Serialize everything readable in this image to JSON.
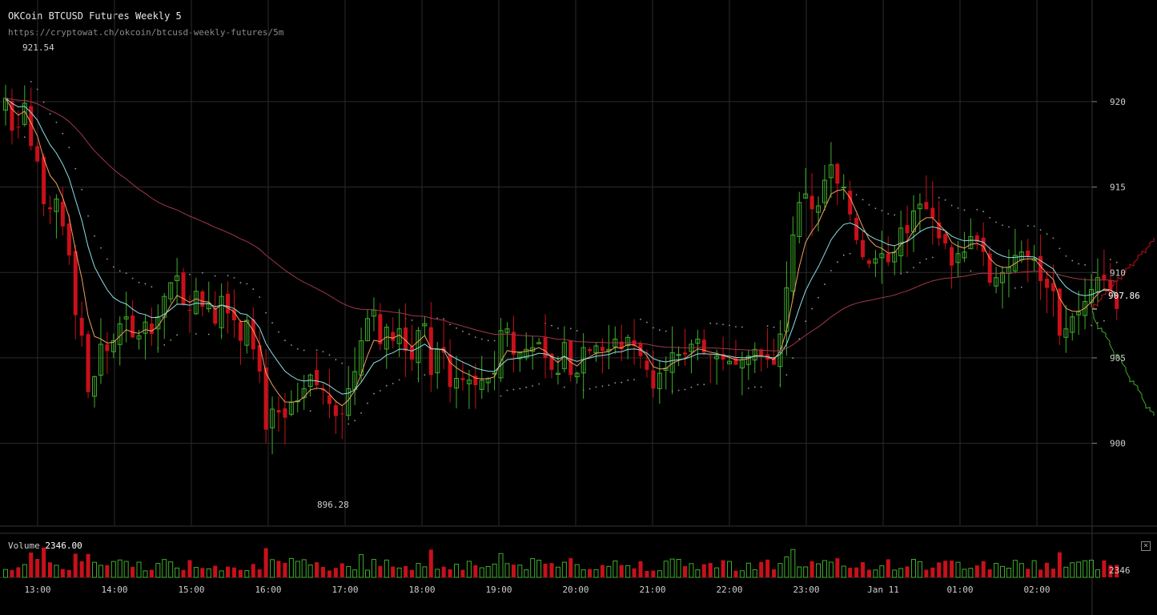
{
  "header": {
    "title": "OKCoin BTCUSD Futures Weekly 5",
    "url": "https://cryptowat.ch/okcoin/btcusd-weekly-futures/5m"
  },
  "volume_panel": {
    "label": "Volume",
    "value": "2346.00",
    "axis_label": "2346",
    "close_icon": "close-icon"
  },
  "colors": {
    "background": "#000000",
    "up": "#3fae2a",
    "down": "#c8101b",
    "grid": "#2b2b2b",
    "ema_fast": "#f0a060",
    "ema_slow": "#8ee0e6",
    "sma_long": "#a0384a",
    "sar_dots": "#9a9a9a",
    "depth_bid": "#3fae2a",
    "depth_ask": "#c8101b"
  },
  "chart_data": {
    "type": "candlestick",
    "title": "OKCoin BTCUSD Futures Weekly 5",
    "x_tick_labels": [
      "13:00",
      "14:00",
      "15:00",
      "16:00",
      "17:00",
      "18:00",
      "19:00",
      "20:00",
      "21:00",
      "22:00",
      "23:00",
      "Jan 11",
      "01:00",
      "02:00"
    ],
    "y_ticks": [
      900,
      905,
      910,
      915,
      920
    ],
    "ylim": [
      895.2,
      923.7
    ],
    "last_price": "907.86",
    "high_marker": "921.54",
    "low_marker": "896.28",
    "grid": true,
    "closes": [
      920.2,
      918.3,
      918.5,
      919.9,
      917.4,
      916.5,
      914.0,
      913.7,
      914.3,
      912.7,
      911.0,
      907.5,
      906.3,
      903.0,
      903.9,
      905.8,
      905.4,
      906.0,
      907.0,
      907.4,
      906.2,
      906.3,
      907.1,
      906.4,
      907.4,
      908.6,
      909.4,
      909.8,
      908.1,
      907.8,
      908.9,
      908.0,
      908.2,
      907.0,
      908.6,
      907.6,
      907.2,
      906.0,
      907.2,
      905.5,
      904.2,
      900.8,
      902.0,
      901.8,
      901.5,
      902.4,
      902.5,
      903.2,
      904.0,
      903.4,
      903.1,
      902.3,
      901.6,
      901.7,
      903.2,
      904.2,
      906.0,
      907.3,
      907.8,
      905.8,
      906.8,
      906.0,
      906.7,
      905.4,
      904.9,
      906.6,
      907.0,
      904.0,
      905.5,
      905.3,
      903.3,
      903.8,
      903.7,
      903.7,
      903.4,
      903.7,
      903.8,
      904.1,
      906.6,
      906.7,
      905.2,
      905.3,
      905.5,
      905.6,
      905.9,
      905.0,
      904.3,
      904.1,
      905.9,
      904.0,
      904.1,
      905.6,
      905.4,
      905.7,
      905.4,
      905.5,
      906.1,
      905.5,
      906.2,
      905.7,
      905.1,
      904.3,
      903.2,
      904.1,
      904.4,
      905.3,
      905.2,
      905.2,
      905.8,
      906.1,
      905.3,
      905.1,
      905.1,
      904.9,
      904.8,
      904.6,
      904.9,
      905.1,
      905.5,
      905.1,
      904.9,
      904.6,
      906.4,
      909.1,
      912.2,
      914.1,
      914.6,
      913.7,
      913.9,
      915.4,
      916.3,
      915.2,
      915.0,
      913.4,
      911.9,
      910.9,
      910.5,
      910.8,
      911.1,
      910.6,
      911.2,
      912.6,
      912.3,
      913.6,
      914.0,
      913.7,
      913.2,
      912.0,
      911.7,
      910.4,
      911.1,
      911.2,
      912.1,
      911.8,
      911.2,
      909.4,
      909.7,
      910.0,
      910.3,
      911.0,
      911.2,
      910.9,
      910.8,
      909.5,
      909.1,
      908.9,
      906.3,
      906.7,
      907.4,
      907.7,
      908.3,
      909.0,
      909.7,
      909.6,
      908.9,
      907.86
    ]
  }
}
